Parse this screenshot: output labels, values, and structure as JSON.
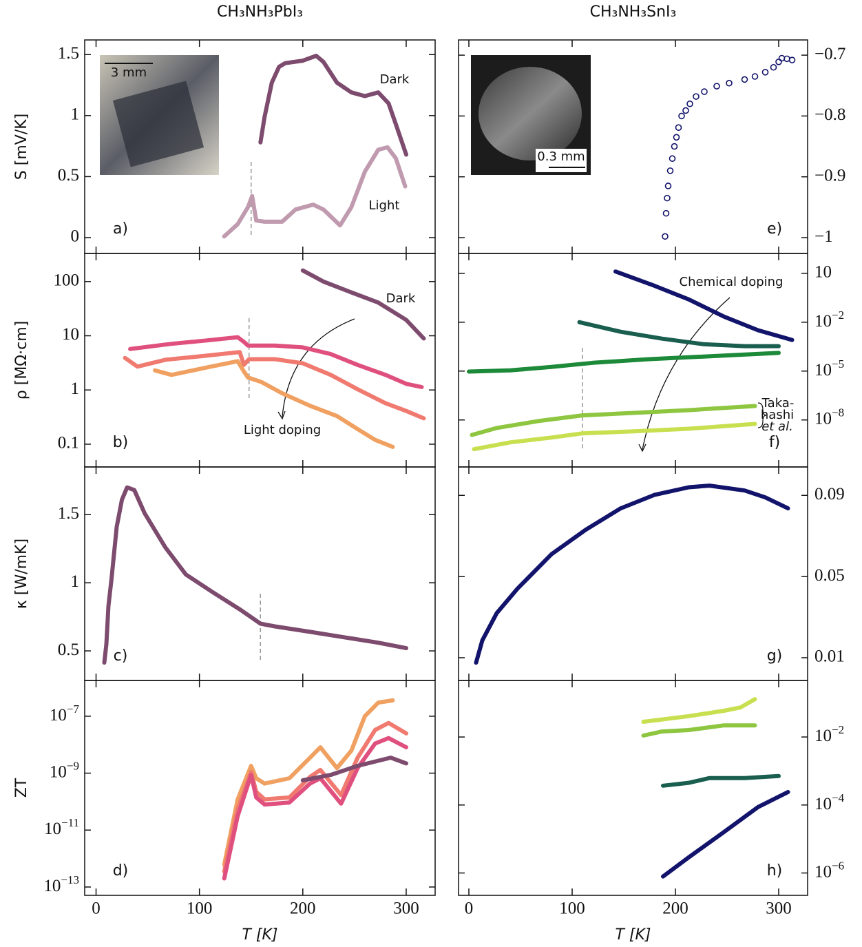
{
  "chart_data": [
    {
      "type": "line",
      "title": "CH₃NH₃PbI₃",
      "panel_label": "a)",
      "ylabel": "S [mV/K]",
      "ylim": [
        -0.13,
        1.62
      ],
      "yticks": [
        0,
        0.5,
        1,
        1.5
      ],
      "xlim": [
        -11,
        328
      ],
      "vline": 150,
      "inset_scale": "3 mm",
      "series": [
        {
          "name": "Dark",
          "color": "#7d4b6e",
          "x": [
            159,
            163,
            170,
            177,
            183,
            200,
            213,
            220,
            233,
            247,
            260,
            273,
            283,
            290,
            300
          ],
          "values": [
            0.78,
            0.99,
            1.27,
            1.4,
            1.43,
            1.45,
            1.49,
            1.44,
            1.27,
            1.19,
            1.16,
            1.19,
            1.1,
            0.93,
            0.68
          ]
        },
        {
          "name": "Light",
          "color": "#c09aae",
          "x": [
            124,
            137,
            147,
            151,
            155,
            163,
            180,
            193,
            210,
            220,
            236,
            247,
            260,
            273,
            282,
            290,
            299
          ],
          "values": [
            0.01,
            0.11,
            0.25,
            0.34,
            0.14,
            0.13,
            0.13,
            0.23,
            0.27,
            0.23,
            0.1,
            0.25,
            0.54,
            0.72,
            0.74,
            0.65,
            0.42
          ]
        }
      ]
    },
    {
      "type": "line",
      "panel_label": "b)",
      "ylabel": "ρ [MΩ·cm]",
      "log": true,
      "ylim": [
        0.038,
        330
      ],
      "yticks": [
        0.1,
        1,
        10,
        100
      ],
      "xlim": [
        -11,
        328
      ],
      "vline": 148,
      "annotations": [
        "Dark",
        "Light doping"
      ],
      "series": [
        {
          "color": "#7d4b6e",
          "x": [
            200,
            220,
            247,
            273,
            300,
            317
          ],
          "values": [
            160,
            100,
            63,
            41,
            19.6,
            8.9
          ]
        },
        {
          "color": "#e0507f",
          "x": [
            33,
            73,
            107,
            137,
            143,
            147,
            173,
            200,
            227,
            253,
            280,
            300,
            315
          ],
          "values": [
            5.7,
            7.1,
            8.2,
            9.4,
            7.7,
            6.6,
            6.6,
            6.1,
            4.6,
            2.9,
            1.9,
            1.3,
            1.13
          ]
        },
        {
          "color": "#f07a70",
          "x": [
            28,
            40,
            67,
            107,
            139,
            143,
            148,
            173,
            200,
            227,
            253,
            280,
            300,
            317
          ],
          "values": [
            3.9,
            2.7,
            3.6,
            4.3,
            5.0,
            2.9,
            3.7,
            3.7,
            3.1,
            1.9,
            1.03,
            0.57,
            0.41,
            0.3
          ]
        },
        {
          "color": "#f0a060",
          "x": [
            57,
            73,
            107,
            137,
            143,
            147,
            160,
            180,
            207,
            233,
            253,
            270,
            287
          ],
          "values": [
            2.3,
            1.9,
            2.6,
            3.4,
            2.2,
            1.7,
            1.4,
            0.87,
            0.51,
            0.33,
            0.19,
            0.12,
            0.089
          ]
        }
      ]
    },
    {
      "type": "line",
      "panel_label": "c)",
      "ylabel": "κ [W/mK]",
      "ylim": [
        0.283,
        1.85
      ],
      "yticks": [
        0.5,
        1,
        1.5
      ],
      "xlim": [
        -11,
        328
      ],
      "vline": 159,
      "series": [
        {
          "color": "#7d4b6e",
          "x": [
            8,
            10,
            12,
            15,
            20,
            25,
            30,
            37,
            47,
            67,
            87,
            113,
            140,
            159,
            173,
            207,
            240,
            273,
            300
          ],
          "values": [
            0.414,
            0.55,
            0.83,
            1.03,
            1.41,
            1.61,
            1.7,
            1.68,
            1.51,
            1.26,
            1.06,
            0.93,
            0.8,
            0.7,
            0.68,
            0.64,
            0.6,
            0.56,
            0.52
          ]
        }
      ]
    },
    {
      "type": "line",
      "panel_label": "d)",
      "ylabel": "ZT",
      "xlabel": "T [K]",
      "log": true,
      "ylim": [
        5.1e-14,
        1.8e-06
      ],
      "xlim": [
        -11,
        328
      ],
      "xticks": [
        0,
        100,
        200,
        300
      ],
      "yticks": [
        {
          "value": 1e-13,
          "label": "10−13"
        },
        {
          "value": 1e-11,
          "label": "10−11"
        },
        {
          "value": 1e-09,
          "label": "10−9"
        },
        {
          "value": 1e-07,
          "label": "10−7"
        }
      ],
      "series": [
        {
          "color": "#f0a060",
          "x": [
            124,
            137,
            150,
            155,
            163,
            187,
            207,
            217,
            233,
            247,
            260,
            273,
            287
          ],
          "values": [
            6.2e-13,
            1.2e-10,
            1.8e-09,
            6.6e-10,
            4.3e-10,
            6.6e-10,
            3.5e-09,
            8.1e-09,
            1.5e-09,
            6.2e-09,
            1e-07,
            3e-07,
            3.6e-07
          ]
        },
        {
          "color": "#f07a70",
          "x": [
            124,
            137,
            150,
            155,
            163,
            187,
            207,
            217,
            237,
            253,
            270,
            283,
            300
          ],
          "values": [
            3.5e-13,
            5.4e-11,
            1.1e-09,
            2.2e-10,
            1.2e-10,
            1.4e-10,
            7.4e-10,
            1.3e-09,
            1.7e-10,
            3.5e-09,
            3.3e-08,
            5.8e-08,
            2.5e-08
          ]
        },
        {
          "color": "#e0507f",
          "x": [
            124,
            137,
            150,
            155,
            163,
            187,
            207,
            217,
            237,
            253,
            270,
            283,
            300
          ],
          "values": [
            2e-13,
            3.1e-11,
            8.7e-10,
            1.4e-10,
            7.9e-11,
            9.3e-11,
            4.3e-10,
            6.6e-10,
            8.5e-11,
            1.5e-09,
            1.1e-08,
            1.7e-08,
            8.1e-09
          ]
        },
        {
          "color": "#7d4b6e",
          "x": [
            200,
            227,
            253,
            285,
            300
          ],
          "values": [
            5.6e-10,
            8.7e-10,
            1.8e-09,
            3.5e-09,
            2.2e-09
          ]
        }
      ]
    },
    {
      "type": "scatter",
      "title": "CH₃NH₃SnI₃",
      "panel_label": "e)",
      "ylim": [
        -1.026,
        -0.675
      ],
      "xlim": [
        -10,
        328
      ],
      "inset_scale": "0.3 mm",
      "yticks": [
        {
          "value": -1,
          "label": "−1"
        },
        {
          "value": -0.9,
          "label": "−0.9"
        },
        {
          "value": -0.8,
          "label": "−0.8"
        },
        {
          "value": -0.7,
          "label": "−0.7"
        }
      ],
      "series": [
        {
          "color": "#12136b",
          "x": [
            190,
            191,
            192,
            193,
            195,
            197,
            199,
            201,
            203,
            206,
            210,
            214,
            220,
            228,
            240,
            252,
            267,
            277,
            287,
            295,
            300,
            303,
            308,
            313
          ],
          "values": [
            -0.998,
            -0.96,
            -0.935,
            -0.915,
            -0.89,
            -0.87,
            -0.85,
            -0.835,
            -0.819,
            -0.8,
            -0.791,
            -0.78,
            -0.768,
            -0.76,
            -0.751,
            -0.746,
            -0.74,
            -0.735,
            -0.728,
            -0.72,
            -0.711,
            -0.705,
            -0.706,
            -0.708
          ]
        }
      ]
    },
    {
      "type": "line",
      "panel_label": "f)",
      "log": true,
      "ylim": [
        1.3e-11,
        166
      ],
      "xlim": [
        -10,
        328
      ],
      "vline": 110,
      "yticks": [
        {
          "value": 1e-08,
          "label": "10−8"
        },
        {
          "value": 1e-05,
          "label": "10−5"
        },
        {
          "value": 0.01,
          "label": "10−2"
        },
        10
      ],
      "annotations": [
        "Chemical doping",
        "Taka-",
        "hashi",
        "et al."
      ],
      "series": [
        {
          "color": "#12136b",
          "x": [
            142,
            180,
            213,
            247,
            280,
            313
          ],
          "values": [
            13,
            1.7,
            0.25,
            0.022,
            0.0032,
            0.00081
          ]
        },
        {
          "color": "#1a5e50",
          "x": [
            107,
            147,
            187,
            227,
            267,
            300
          ],
          "values": [
            0.01,
            0.0026,
            0.00098,
            0.00045,
            0.00034,
            0.00034
          ]
        },
        {
          "color": "#1d8a3a",
          "x": [
            0,
            40,
            80,
            120,
            173,
            227,
            300
          ],
          "values": [
            9.3e-06,
            1.1e-05,
            1.8e-05,
            3.2e-05,
            5.3e-05,
            7.8e-05,
            0.00013
          ]
        },
        {
          "color": "#8ec640",
          "x": [
            3,
            27,
            67,
            110,
            160,
            213,
            277
          ],
          "values": [
            1.2e-09,
            3.2e-09,
            8.5e-09,
            1.9e-08,
            2.7e-08,
            4e-08,
            7.2e-08
          ]
        },
        {
          "color": "#c8e050",
          "x": [
            5,
            40,
            80,
            110,
            160,
            213,
            277
          ],
          "values": [
            1.6e-10,
            4.2e-10,
            8.3e-10,
            1.5e-09,
            2e-09,
            2.9e-09,
            5.7e-09
          ]
        }
      ]
    },
    {
      "type": "line",
      "panel_label": "g)",
      "ylim": [
        -0.0012,
        0.104
      ],
      "yticks": [
        0.01,
        0.05,
        0.09
      ],
      "xlim": [
        -10,
        328
      ],
      "series": [
        {
          "color": "#12136b",
          "x": [
            7,
            13,
            27,
            47,
            80,
            113,
            147,
            180,
            213,
            233,
            267,
            287,
            309
          ],
          "values": [
            0.0076,
            0.0185,
            0.032,
            0.044,
            0.061,
            0.073,
            0.0836,
            0.0903,
            0.094,
            0.0948,
            0.0924,
            0.089,
            0.0836
          ]
        }
      ]
    },
    {
      "type": "line",
      "panel_label": "h)",
      "xlabel": "T [K]",
      "log": true,
      "ylim": [
        2.2e-07,
        0.46
      ],
      "xlim": [
        -10,
        328
      ],
      "xticks": [
        0,
        100,
        200,
        300
      ],
      "yticks": [
        {
          "value": 1e-06,
          "label": "10−6"
        },
        {
          "value": 0.0001,
          "label": "10−4"
        },
        {
          "value": 0.01,
          "label": "10−2"
        }
      ],
      "series": [
        {
          "color": "#c8e050",
          "x": [
            169,
            213,
            247,
            263,
            277
          ],
          "values": [
            0.028,
            0.041,
            0.059,
            0.074,
            0.13
          ]
        },
        {
          "color": "#8ec640",
          "x": [
            169,
            187,
            213,
            247,
            277
          ],
          "values": [
            0.011,
            0.0145,
            0.016,
            0.022,
            0.022
          ]
        },
        {
          "color": "#1a5e50",
          "x": [
            188,
            213,
            233,
            267,
            300
          ],
          "values": [
            0.00037,
            0.00045,
            0.00062,
            0.00062,
            0.00071
          ]
        },
        {
          "color": "#12136b",
          "x": [
            188,
            213,
            247,
            280,
            309
          ],
          "values": [
            7.9e-07,
            2.9e-06,
            1.6e-05,
            8.7e-05,
            0.00024
          ]
        }
      ]
    }
  ]
}
